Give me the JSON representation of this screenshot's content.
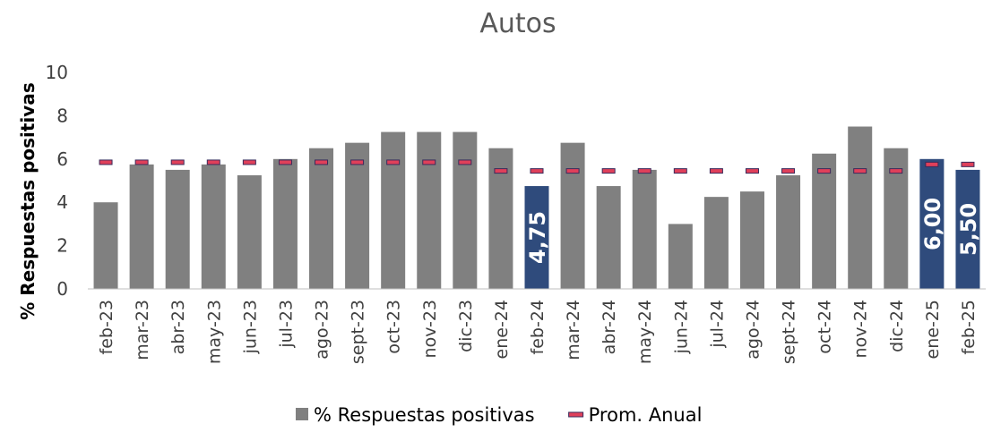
{
  "chart_data": {
    "type": "bar",
    "title": "Autos",
    "y_label": "% Respuestas positivas",
    "categories": [
      "feb-23",
      "mar-23",
      "abr-23",
      "may-23",
      "jun-23",
      "jul-23",
      "ago-23",
      "sept-23",
      "oct-23",
      "nov-23",
      "dic-23",
      "ene-24",
      "feb-24",
      "mar-24",
      "abr-24",
      "may-24",
      "jun-24",
      "jul-24",
      "ago-24",
      "sept-24",
      "oct-24",
      "nov-24",
      "dic-24",
      "ene-25",
      "feb-25"
    ],
    "series": [
      {
        "name": "% Respuestas positivas",
        "type": "bar",
        "color": "#808080",
        "highlight_color": "#2f4b7c",
        "values": [
          4.0,
          5.75,
          5.5,
          5.75,
          5.25,
          6.0,
          6.5,
          6.75,
          7.25,
          7.25,
          7.25,
          6.5,
          4.75,
          6.75,
          4.75,
          5.5,
          3.0,
          4.25,
          4.5,
          5.25,
          6.25,
          7.5,
          6.5,
          6.0,
          5.5
        ],
        "value_labels": [
          null,
          null,
          null,
          null,
          null,
          null,
          null,
          null,
          null,
          null,
          null,
          null,
          "4,75",
          null,
          null,
          null,
          null,
          null,
          null,
          null,
          null,
          null,
          null,
          "6,00",
          "5,50"
        ]
      },
      {
        "name": "Prom. Anual",
        "type": "marker",
        "color": "#e0405a",
        "edge_color": "#3a2a5a",
        "values": [
          5.85,
          5.85,
          5.85,
          5.85,
          5.85,
          5.85,
          5.85,
          5.85,
          5.85,
          5.85,
          5.85,
          5.45,
          5.45,
          5.45,
          5.45,
          5.45,
          5.45,
          5.45,
          5.45,
          5.45,
          5.45,
          5.45,
          5.45,
          5.75,
          5.75
        ]
      }
    ],
    "ylim": [
      0,
      10
    ],
    "yticks": [
      0,
      2,
      4,
      6,
      8,
      10
    ],
    "grid": false,
    "legend": "bottom"
  }
}
